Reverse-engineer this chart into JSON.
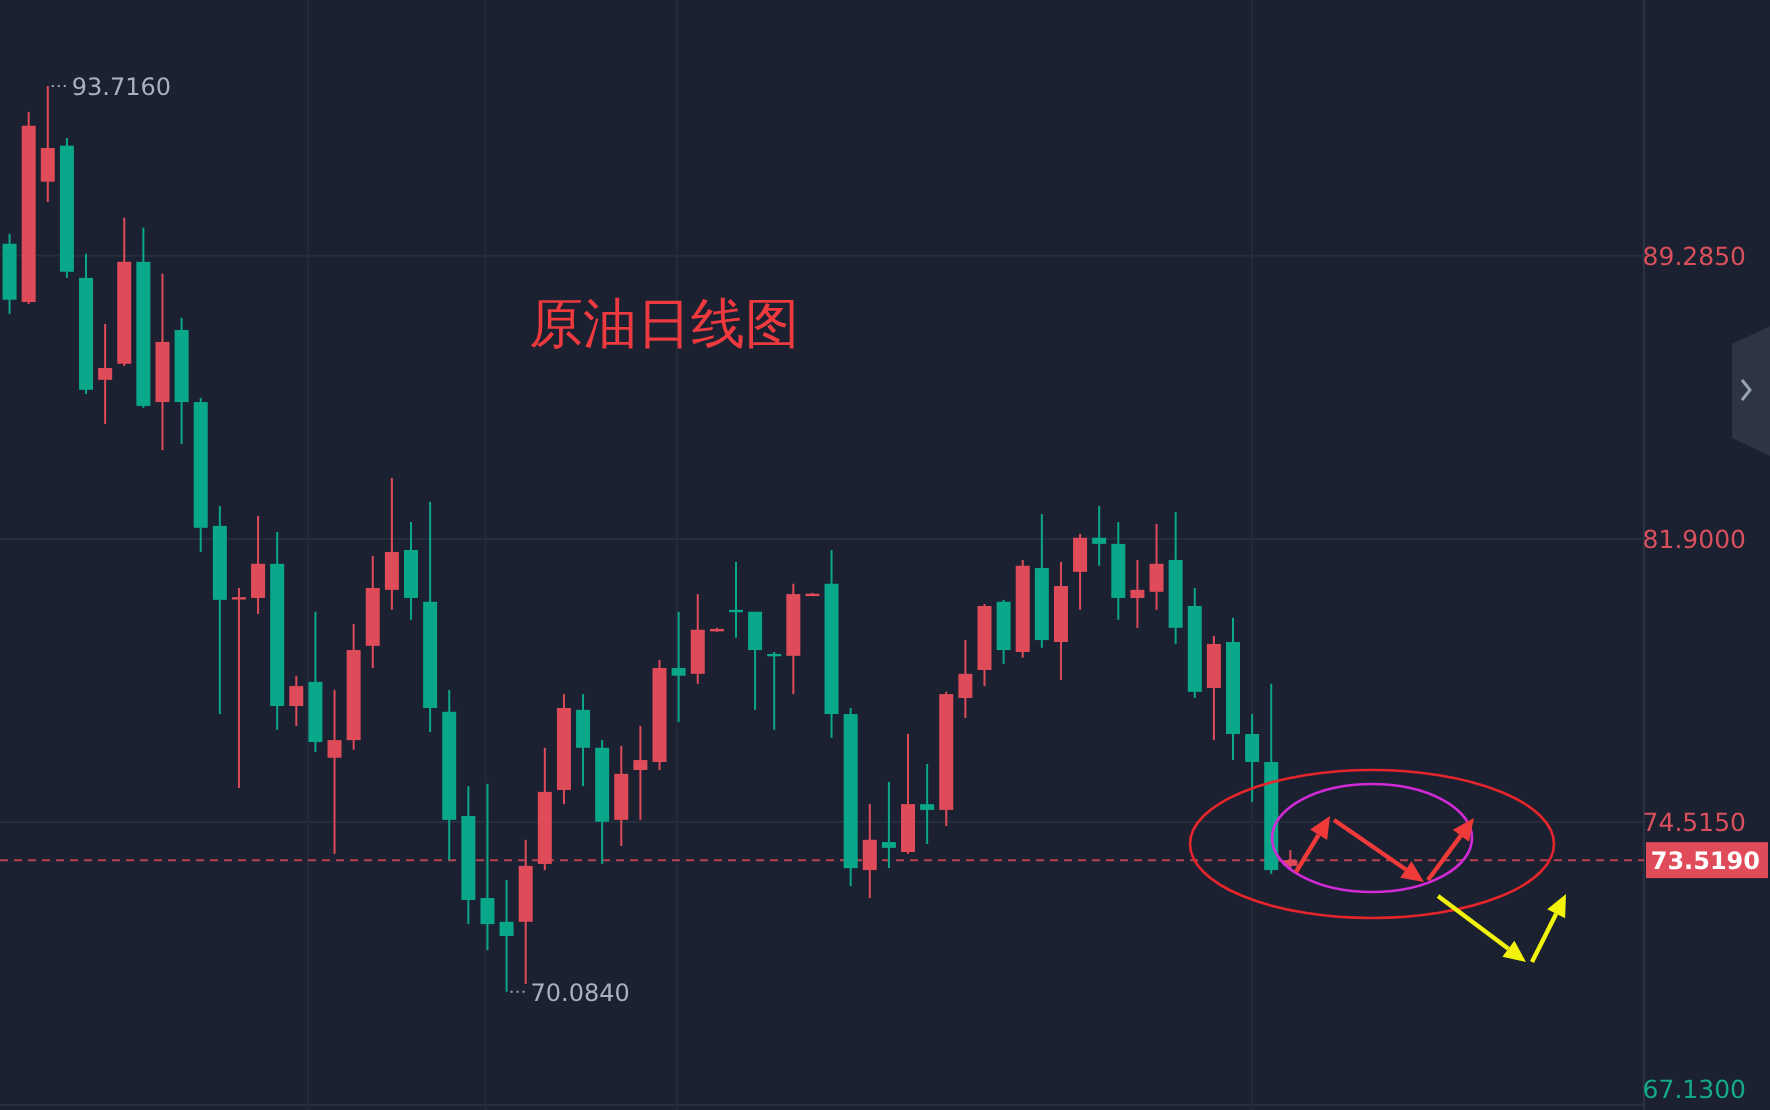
{
  "chart_data": {
    "type": "candlestick",
    "title": "原油日线图",
    "categories": [
      null,
      null,
      null,
      null,
      null,
      null,
      null,
      null,
      null,
      null,
      null,
      null,
      null,
      null,
      null,
      null,
      null,
      null,
      null,
      null,
      null,
      null,
      null,
      null,
      null,
      null,
      null,
      null,
      null,
      null,
      null,
      null,
      null,
      null,
      null,
      null,
      null,
      null,
      null,
      null,
      null,
      null,
      null,
      null,
      null,
      null,
      null,
      null,
      null,
      null,
      null,
      null,
      null,
      null,
      null,
      null,
      null,
      null,
      null,
      null,
      null,
      null,
      null,
      null,
      null,
      null,
      null,
      null,
      null,
      null,
      null,
      null,
      null,
      null,
      null,
      null,
      null,
      null,
      null,
      null,
      null,
      null,
      null,
      null,
      null,
      null
    ],
    "ohlc": [
      [
        89.6,
        89.86,
        87.77,
        88.14
      ],
      [
        88.08,
        93.04,
        88.03,
        92.68
      ],
      [
        91.22,
        93.716,
        90.69,
        92.1
      ],
      [
        92.16,
        92.36,
        88.71,
        88.87
      ],
      [
        88.71,
        89.34,
        85.68,
        85.79
      ],
      [
        86.05,
        87.51,
        84.9,
        86.36
      ],
      [
        86.47,
        90.28,
        86.41,
        89.13
      ],
      [
        89.13,
        90.02,
        85.32,
        85.37
      ],
      [
        85.47,
        88.82,
        84.22,
        87.04
      ],
      [
        87.35,
        87.67,
        84.38,
        85.47
      ],
      [
        85.47,
        85.58,
        81.56,
        82.19
      ],
      [
        82.24,
        82.76,
        77.33,
        80.31
      ],
      [
        80.36,
        80.62,
        75.4,
        80.38
      ],
      [
        80.36,
        82.5,
        79.94,
        81.25
      ],
      [
        81.25,
        82.08,
        76.92,
        77.54
      ],
      [
        77.54,
        78.33,
        77.02,
        78.06
      ],
      [
        78.17,
        80.0,
        76.34,
        76.6
      ],
      [
        76.19,
        77.96,
        73.68,
        76.65
      ],
      [
        76.65,
        79.68,
        76.4,
        79.0
      ],
      [
        79.11,
        81.46,
        78.53,
        80.62
      ],
      [
        80.57,
        83.49,
        80.05,
        81.56
      ],
      [
        81.61,
        82.34,
        79.79,
        80.36
      ],
      [
        80.26,
        82.87,
        76.86,
        77.49
      ],
      [
        77.39,
        77.96,
        73.52,
        74.57
      ],
      [
        74.67,
        75.45,
        71.85,
        72.48
      ],
      [
        72.53,
        75.51,
        71.17,
        71.85
      ],
      [
        71.91,
        73.0,
        70.084,
        71.54
      ],
      [
        71.91,
        74.05,
        70.29,
        73.37
      ],
      [
        73.42,
        76.45,
        73.26,
        75.3
      ],
      [
        75.35,
        77.85,
        74.98,
        77.49
      ],
      [
        77.44,
        77.85,
        75.45,
        76.45
      ],
      [
        76.45,
        76.65,
        73.42,
        74.52
      ],
      [
        74.57,
        76.5,
        73.89,
        75.77
      ],
      [
        75.87,
        77.02,
        74.57,
        76.13
      ],
      [
        76.08,
        78.74,
        75.87,
        78.53
      ],
      [
        78.53,
        80.0,
        77.12,
        78.33
      ],
      [
        78.38,
        80.46,
        78.12,
        79.53
      ],
      [
        79.53,
        79.58,
        79.48,
        79.55
      ],
      [
        80.05,
        81.3,
        79.32,
        80.02
      ],
      [
        80.0,
        80.0,
        77.44,
        79.0
      ],
      [
        78.9,
        78.95,
        76.92,
        78.87
      ],
      [
        78.85,
        80.73,
        77.85,
        80.46
      ],
      [
        80.46,
        80.49,
        80.44,
        80.47
      ],
      [
        80.73,
        81.61,
        76.71,
        77.33
      ],
      [
        77.33,
        77.49,
        72.84,
        73.31
      ],
      [
        73.26,
        74.98,
        72.53,
        74.05
      ],
      [
        73.99,
        75.56,
        73.31,
        73.84
      ],
      [
        73.73,
        76.81,
        73.68,
        74.98
      ],
      [
        74.98,
        76.03,
        73.94,
        74.83
      ],
      [
        74.83,
        77.91,
        74.41,
        77.85
      ],
      [
        77.75,
        79.26,
        77.23,
        78.38
      ],
      [
        78.48,
        80.2,
        78.06,
        80.15
      ],
      [
        80.26,
        80.31,
        78.64,
        79.0
      ],
      [
        78.95,
        81.35,
        78.8,
        81.2
      ],
      [
        81.14,
        82.55,
        79.06,
        79.26
      ],
      [
        79.21,
        81.3,
        78.22,
        80.67
      ],
      [
        81.04,
        82.03,
        80.05,
        81.93
      ],
      [
        81.93,
        82.76,
        81.2,
        81.77
      ],
      [
        81.77,
        82.34,
        79.79,
        80.36
      ],
      [
        80.36,
        81.35,
        79.58,
        80.57
      ],
      [
        80.52,
        82.29,
        80.05,
        81.25
      ],
      [
        81.35,
        82.6,
        79.16,
        79.58
      ],
      [
        80.15,
        80.62,
        77.75,
        77.91
      ],
      [
        78.01,
        79.37,
        76.65,
        79.16
      ],
      [
        79.21,
        79.84,
        76.13,
        76.81
      ],
      [
        76.81,
        77.33,
        75.04,
        76.08
      ],
      [
        76.08,
        78.12,
        73.16,
        73.26
      ],
      [
        73.37,
        73.78,
        73.31,
        73.519
      ],
      null,
      null,
      null,
      null,
      null,
      null,
      null,
      null,
      null,
      null,
      null,
      null,
      null,
      null,
      null,
      null,
      null,
      null
    ],
    "colors": [
      "#0aa88a",
      "#e04b5a",
      "#e04b5a",
      "#0aa88a",
      "#0aa88a",
      "#e04b5a",
      "#e04b5a",
      "#0aa88a",
      "#e04b5a",
      "#0aa88a",
      "#0aa88a",
      "#0aa88a",
      "#e04b5a",
      "#e04b5a",
      "#0aa88a",
      "#e04b5a",
      "#0aa88a",
      "#e04b5a",
      "#e04b5a",
      "#e04b5a",
      "#e04b5a",
      "#0aa88a",
      "#0aa88a",
      "#0aa88a",
      "#0aa88a",
      "#0aa88a",
      "#0aa88a",
      "#e04b5a",
      "#e04b5a",
      "#e04b5a",
      "#0aa88a",
      "#0aa88a",
      "#e04b5a",
      "#e04b5a",
      "#e04b5a",
      "#0aa88a",
      "#e04b5a",
      "#e04b5a",
      "#0aa88a",
      "#0aa88a",
      "#0aa88a",
      "#e04b5a",
      "#e04b5a",
      "#0aa88a",
      "#0aa88a",
      "#e04b5a",
      "#0aa88a",
      "#e04b5a",
      "#0aa88a",
      "#e04b5a",
      "#e04b5a",
      "#e04b5a",
      "#0aa88a",
      "#e04b5a",
      "#0aa88a",
      "#e04b5a",
      "#e04b5a",
      "#0aa88a",
      "#0aa88a",
      "#e04b5a",
      "#e04b5a",
      "#0aa88a",
      "#0aa88a",
      "#e04b5a",
      "#0aa88a",
      "#0aa88a",
      "#0aa88a",
      "#e04b5a",
      null,
      null,
      null,
      null,
      null,
      null,
      null,
      null,
      null,
      null,
      null,
      null,
      null,
      null,
      null,
      null,
      null,
      null
    ],
    "ylim": [
      67.0,
      95.96
    ],
    "yticks": [
      {
        "value": 67.13,
        "label": "67.1300"
      },
      {
        "value": 74.515,
        "label": "74.5150"
      },
      {
        "value": 81.9,
        "label": "81.9000"
      },
      {
        "value": 89.285,
        "label": "89.2850"
      }
    ],
    "grid": true,
    "tick_labels": "y",
    "ref_lines": [
      {
        "axis": "y",
        "value": 73.519,
        "label": "73.5190",
        "color": "#e04b5a",
        "line_style": "dashed"
      }
    ],
    "annotations": [
      "93.7160",
      "70.0840"
    ]
  }
}
